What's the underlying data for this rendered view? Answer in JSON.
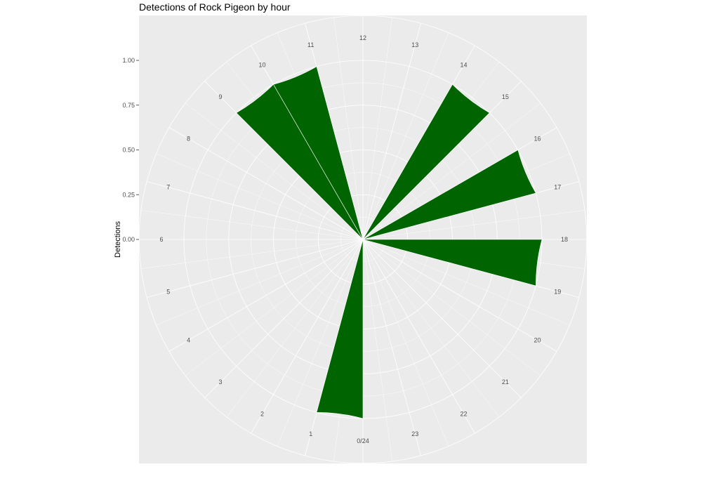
{
  "chart_data": {
    "type": "bar",
    "coordinate_system": "polar",
    "title": "Detections of Rock Pigeon by hour",
    "ylabel": "Detections",
    "xlabel": "",
    "categories": [
      "0/24",
      "1",
      "2",
      "3",
      "4",
      "5",
      "6",
      "7",
      "8",
      "9",
      "10",
      "11",
      "12",
      "13",
      "14",
      "15",
      "16",
      "17",
      "18",
      "19",
      "20",
      "21",
      "22",
      "23"
    ],
    "values": [
      1,
      0,
      0,
      0,
      0,
      0,
      0,
      0,
      0,
      1,
      1,
      0,
      0,
      0,
      1,
      0,
      1,
      0,
      1,
      0,
      0,
      0,
      0,
      0
    ],
    "ylim": [
      0,
      1
    ],
    "y_ticks": [
      "0.00",
      "0.25",
      "0.50",
      "0.75",
      "1.00"
    ],
    "bar_color": "#006400",
    "panel_color": "#ebebeb",
    "grid_color": "#ffffff",
    "grid": true,
    "legend": "none"
  }
}
